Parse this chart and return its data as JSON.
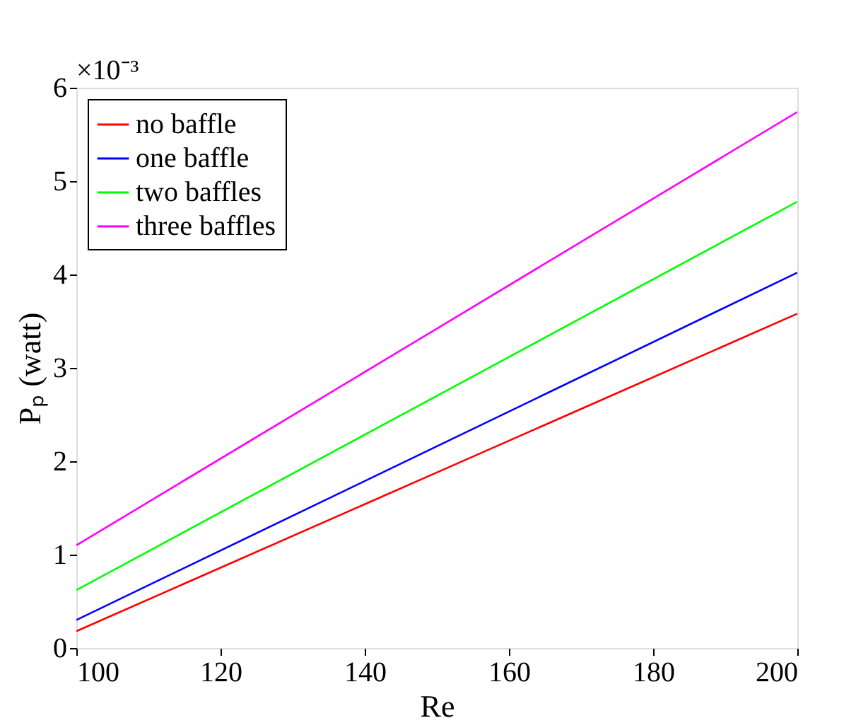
{
  "chart_data": {
    "type": "line",
    "xlabel": "Re",
    "ylabel": "Pₚ (watt)",
    "annotations": [
      "×10⁻³"
    ],
    "x": [
      100,
      150,
      200
    ],
    "series": [
      {
        "name": "no baffle",
        "color": "#ff0000",
        "values": [
          0.18,
          1.88,
          3.58
        ]
      },
      {
        "name": "one baffle",
        "color": "#0000ff",
        "values": [
          0.3,
          2.16,
          4.02
        ]
      },
      {
        "name": "two baffles",
        "color": "#00ff00",
        "values": [
          0.62,
          2.7,
          4.78
        ]
      },
      {
        "name": "three baffles",
        "color": "#ff00ff",
        "values": [
          1.1,
          3.42,
          5.74
        ]
      }
    ],
    "xlim": [
      100,
      200
    ],
    "xticks": [
      100,
      120,
      140,
      160,
      180,
      200
    ],
    "ylim": [
      0,
      6
    ],
    "yticks": [
      0,
      1,
      2,
      3,
      4,
      5,
      6
    ],
    "grid": false,
    "legend": "top left",
    "marker": "none",
    "line_style": "solid"
  }
}
